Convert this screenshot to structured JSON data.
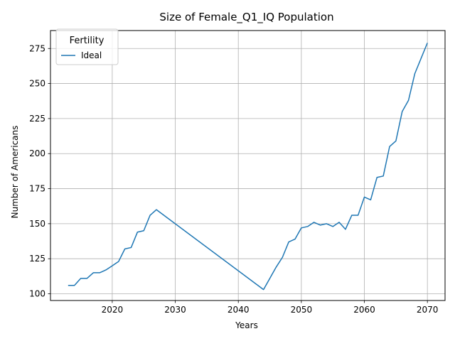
{
  "chart_data": {
    "type": "line",
    "title": "Size of Female_Q1_IQ Population",
    "xlabel": "Years",
    "ylabel": "Number of Americans",
    "xlim": [
      2010.2,
      2072.8
    ],
    "ylim": [
      95.2,
      287.8
    ],
    "xticks": [
      2020,
      2030,
      2040,
      2050,
      2060,
      2070
    ],
    "yticks": [
      100,
      125,
      150,
      175,
      200,
      225,
      250,
      275
    ],
    "grid": true,
    "legend": {
      "title": "Fertility",
      "position": "top-left"
    },
    "series": [
      {
        "name": "Ideal",
        "color": "#1f77b4",
        "points": [
          [
            2013,
            106
          ],
          [
            2014,
            106
          ],
          [
            2015,
            111
          ],
          [
            2016,
            111
          ],
          [
            2017,
            115
          ],
          [
            2018,
            115
          ],
          [
            2019,
            117
          ],
          [
            2020,
            120
          ],
          [
            2021,
            123
          ],
          [
            2022,
            132
          ],
          [
            2023,
            133
          ],
          [
            2024,
            144
          ],
          [
            2025,
            145
          ],
          [
            2026,
            156
          ],
          [
            2027,
            160
          ],
          [
            2044,
            103
          ],
          [
            2045,
            111
          ],
          [
            2046,
            119
          ],
          [
            2047,
            126
          ],
          [
            2048,
            137
          ],
          [
            2049,
            139
          ],
          [
            2050,
            147
          ],
          [
            2051,
            148
          ],
          [
            2052,
            151
          ],
          [
            2053,
            149
          ],
          [
            2054,
            150
          ],
          [
            2055,
            148
          ],
          [
            2056,
            151
          ],
          [
            2057,
            146
          ],
          [
            2058,
            156
          ],
          [
            2059,
            156
          ],
          [
            2060,
            169
          ],
          [
            2061,
            167
          ],
          [
            2062,
            183
          ],
          [
            2063,
            184
          ],
          [
            2064,
            205
          ],
          [
            2065,
            209
          ],
          [
            2066,
            230
          ],
          [
            2067,
            238
          ],
          [
            2068,
            257
          ],
          [
            2069,
            268
          ],
          [
            2070,
            279
          ]
        ]
      }
    ]
  }
}
